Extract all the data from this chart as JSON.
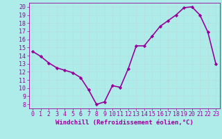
{
  "x": [
    0,
    1,
    2,
    3,
    4,
    5,
    6,
    7,
    8,
    9,
    10,
    11,
    12,
    13,
    14,
    15,
    16,
    17,
    18,
    19,
    20,
    21,
    22,
    23
  ],
  "y": [
    14.5,
    13.9,
    13.1,
    12.5,
    12.2,
    11.9,
    11.3,
    9.8,
    8.0,
    8.3,
    10.3,
    10.1,
    12.4,
    15.2,
    15.2,
    16.4,
    17.6,
    18.3,
    19.0,
    19.9,
    20.0,
    19.0,
    16.9,
    13.0
  ],
  "line_color": "#990099",
  "marker": "D",
  "marker_size": 2.2,
  "bg_color": "#aeecea",
  "plot_bg_color": "#aeecea",
  "grid_color": "#b8dede",
  "xlabel": "Windchill (Refroidissement éolien,°C)",
  "ylabel": "",
  "title": "",
  "xlim": [
    -0.5,
    23.5
  ],
  "ylim": [
    7.5,
    20.5
  ],
  "yticks": [
    8,
    9,
    10,
    11,
    12,
    13,
    14,
    15,
    16,
    17,
    18,
    19,
    20
  ],
  "xticks": [
    0,
    1,
    2,
    3,
    4,
    5,
    6,
    7,
    8,
    9,
    10,
    11,
    12,
    13,
    14,
    15,
    16,
    17,
    18,
    19,
    20,
    21,
    22,
    23
  ],
  "font_color": "#990099",
  "spine_color": "#990099",
  "xlabel_fontsize": 6.5,
  "tick_fontsize": 6.0,
  "linewidth": 1.2
}
